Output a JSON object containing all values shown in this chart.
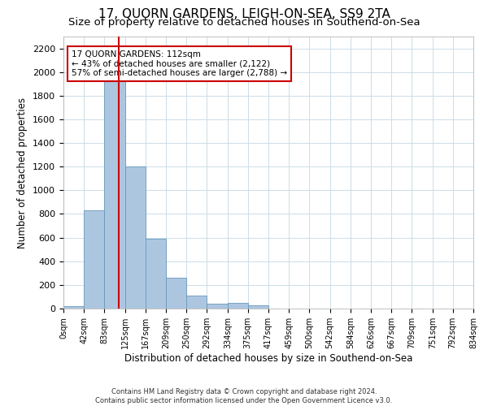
{
  "title": "17, QUORN GARDENS, LEIGH-ON-SEA, SS9 2TA",
  "subtitle": "Size of property relative to detached houses in Southend-on-Sea",
  "xlabel": "Distribution of detached houses by size in Southend-on-Sea",
  "ylabel": "Number of detached properties",
  "footer_line1": "Contains HM Land Registry data © Crown copyright and database right 2024.",
  "footer_line2": "Contains public sector information licensed under the Open Government Licence v3.0.",
  "annotation_title": "17 QUORN GARDENS: 112sqm",
  "annotation_line1": "← 43% of detached houses are smaller (2,122)",
  "annotation_line2": "57% of semi-detached houses are larger (2,788) →",
  "property_size": 112,
  "vline_color": "#cc0000",
  "bar_color": "#adc6e0",
  "bar_edge_color": "#6699bb",
  "bin_edges": [
    0,
    42,
    83,
    125,
    167,
    209,
    250,
    292,
    334,
    375,
    417,
    459,
    500,
    542,
    584,
    626,
    667,
    709,
    751,
    792,
    834
  ],
  "bar_heights": [
    20,
    830,
    1950,
    1200,
    590,
    260,
    110,
    40,
    45,
    30,
    0,
    0,
    0,
    0,
    0,
    0,
    0,
    0,
    0,
    0
  ],
  "ylim": [
    0,
    2300
  ],
  "yticks": [
    0,
    200,
    400,
    600,
    800,
    1000,
    1200,
    1400,
    1600,
    1800,
    2000,
    2200
  ],
  "background_color": "#ffffff",
  "grid_color": "#ccdde8",
  "title_fontsize": 11,
  "subtitle_fontsize": 9.5,
  "xlabel_fontsize": 8.5,
  "ylabel_fontsize": 8.5,
  "footer_fontsize": 6,
  "annotation_fontsize": 7.5,
  "xtick_fontsize": 7,
  "ytick_fontsize": 8
}
